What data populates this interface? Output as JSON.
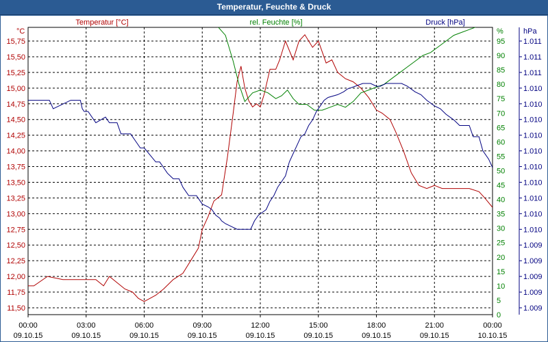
{
  "window": {
    "title": "Temperatur, Feuchte & Druck"
  },
  "chart_data": {
    "type": "line",
    "title": "Temperatur, Feuchte & Druck",
    "x_start": "09.10.15 00:00",
    "x_end": "10.10.15 00:00",
    "x_tick_labels": [
      {
        "time": "00:00",
        "date": "09.10.15"
      },
      {
        "time": "03:00",
        "date": "09.10.15"
      },
      {
        "time": "06:00",
        "date": "09.10.15"
      },
      {
        "time": "09:00",
        "date": "09.10.15"
      },
      {
        "time": "12:00",
        "date": "09.10.15"
      },
      {
        "time": "15:00",
        "date": "09.10.15"
      },
      {
        "time": "18:00",
        "date": "09.10.15"
      },
      {
        "time": "21:00",
        "date": "09.10.15"
      },
      {
        "time": "00:00",
        "date": "10.10.15"
      }
    ],
    "grid": true,
    "axes": {
      "temperature": {
        "unit": "°C",
        "label": "Temperatur [°C]",
        "color": "#b00000",
        "ylim": [
          11.5,
          15.75
        ],
        "ticks": [
          "11,50",
          "11,75",
          "12,00",
          "12,25",
          "12,50",
          "12,75",
          "13,00",
          "13,25",
          "13,50",
          "13,75",
          "14,00",
          "14,25",
          "14,50",
          "14,75",
          "15,00",
          "15,25",
          "15,50",
          "15,75"
        ]
      },
      "humidity": {
        "unit": "%",
        "label": "rel. Feuchte [%]",
        "color": "#008000",
        "ylim": [
          0,
          95
        ],
        "ticks": [
          "0",
          "5",
          "10",
          "15",
          "20",
          "25",
          "30",
          "35",
          "40",
          "45",
          "50",
          "55",
          "60",
          "65",
          "70",
          "75",
          "80",
          "85",
          "90",
          "95"
        ]
      },
      "pressure": {
        "unit": "hPa",
        "label": "Druck [hPa]",
        "color": "#000080",
        "ticks": [
          "1.009",
          "1.009",
          "1.009",
          "1.009",
          "1.009",
          "1.010",
          "1.010",
          "1.010",
          "1.010",
          "1.010",
          "1.010",
          "1.010",
          "1.010",
          "1.010",
          "1.010",
          "1.011",
          "1.011",
          "1.011"
        ]
      }
    },
    "series": [
      {
        "name": "Temperatur [°C]",
        "axis": "temperature",
        "color": "#b00000",
        "x": [
          0,
          0.3,
          1,
          1.8,
          2.4,
          3,
          3.5,
          3.9,
          4.2,
          4.6,
          5,
          5.4,
          5.7,
          6,
          6.3,
          6.6,
          7,
          7.5,
          8,
          8.4,
          8.8,
          9,
          9.3,
          9.6,
          10,
          10.3,
          10.6,
          10.8,
          11,
          11.2,
          11.4,
          11.6,
          11.8,
          12,
          12.2,
          12.5,
          12.8,
          13,
          13.3,
          13.7,
          14,
          14.3,
          14.7,
          15,
          15.4,
          15.7,
          16,
          16.4,
          16.8,
          17.2,
          17.6,
          18,
          18.3,
          18.7,
          19,
          19.4,
          19.8,
          20.2,
          20.6,
          21,
          21.4,
          21.8,
          22.3,
          22.8,
          23.3,
          23.6,
          24
        ],
        "y": [
          11.85,
          11.85,
          12.0,
          11.95,
          11.95,
          11.95,
          11.95,
          11.85,
          12.0,
          11.9,
          11.8,
          11.75,
          11.65,
          11.6,
          11.65,
          11.7,
          11.8,
          11.95,
          12.05,
          12.25,
          12.45,
          12.75,
          12.95,
          13.2,
          13.3,
          13.9,
          14.6,
          15.1,
          15.35,
          15.0,
          14.8,
          14.7,
          14.75,
          14.7,
          14.9,
          15.3,
          15.3,
          15.45,
          15.75,
          15.45,
          15.75,
          15.85,
          15.65,
          15.75,
          15.4,
          15.45,
          15.25,
          15.15,
          15.1,
          15.0,
          14.85,
          14.65,
          14.6,
          14.5,
          14.3,
          14.0,
          13.65,
          13.45,
          13.4,
          13.45,
          13.4,
          13.4,
          13.4,
          13.4,
          13.35,
          13.25,
          13.1
        ]
      },
      {
        "name": "rel. Feuchte [%]",
        "axis": "humidity",
        "color": "#008000",
        "x": [
          9.8,
          10.2,
          10.6,
          10.9,
          11.2,
          11.6,
          12,
          12.4,
          12.8,
          13.1,
          13.4,
          13.7,
          14,
          14.4,
          14.8,
          15.2,
          15.6,
          16,
          16.4,
          16.8,
          17.2,
          17.6,
          18,
          18.4,
          18.8,
          19.2,
          19.6,
          20,
          20.4,
          20.8,
          21.2,
          21.6,
          22,
          22.4,
          22.8,
          23.2,
          23.6
        ],
        "y": [
          100,
          97,
          88,
          80,
          74,
          77,
          78,
          77,
          75,
          76,
          78,
          75,
          73,
          73,
          71,
          71,
          72,
          73,
          72,
          74,
          77,
          78,
          79,
          80,
          82,
          84,
          86,
          88,
          90,
          91,
          93,
          95,
          97,
          98,
          99,
          100,
          100
        ]
      },
      {
        "name": "Druck [hPa]",
        "axis": "pressure",
        "color": "#000080",
        "x": [
          0,
          0.9,
          1.1,
          1.3,
          2.2,
          2.3,
          2.5,
          2.7,
          2.8,
          2.9,
          3.1,
          3.5,
          4,
          4.2,
          4.6,
          4.8,
          5.3,
          5.6,
          5.8,
          6,
          6.6,
          6.8,
          7,
          7.2,
          7.5,
          7.8,
          8,
          8.3,
          8.5,
          8.7,
          8.9,
          9,
          9.3,
          9.5,
          9.7,
          9.9,
          10,
          10.2,
          10.5,
          10.8,
          11,
          11.2,
          11.5,
          11.7,
          11.9,
          12.1,
          12.3,
          12.5,
          12.7,
          12.9,
          13.1,
          13.3,
          13.5,
          13.7,
          13.9,
          14.1,
          14.3,
          14.5,
          14.7,
          14.9,
          15.1,
          15.3,
          15.5,
          16,
          16.3,
          16.5,
          16.9,
          17.3,
          17.7,
          18,
          18.2,
          18.5,
          18.8,
          19,
          19.3,
          19.6,
          20,
          20.3,
          20.6,
          21,
          21.3,
          21.6,
          22,
          22.3,
          22.5,
          22.8,
          23,
          23.3,
          23.5,
          23.8,
          24
        ],
        "y": [
          74,
          74,
          74,
          71,
          74,
          74,
          74,
          74,
          71,
          70,
          70,
          66,
          68,
          66,
          66,
          62,
          62,
          59,
          57,
          57,
          52,
          52,
          50,
          48,
          46,
          46,
          43,
          40,
          40,
          40,
          38,
          37,
          36,
          35,
          33,
          32,
          31,
          30,
          29,
          28,
          28,
          28,
          28,
          31,
          33,
          34,
          35,
          38,
          40,
          43,
          45,
          47,
          52,
          55,
          58,
          61,
          62,
          65,
          67,
          70,
          72,
          74,
          75,
          76,
          77,
          78,
          79,
          80,
          80,
          79,
          79,
          80,
          80,
          80,
          80,
          79,
          77,
          76,
          74,
          72,
          71,
          69,
          67,
          65,
          65,
          65,
          61,
          61,
          56,
          53,
          50
        ]
      }
    ],
    "pressure_display_values": [
      74,
      74,
      74,
      71,
      74,
      74,
      74,
      74,
      71,
      70,
      70,
      66,
      68,
      66,
      66,
      62,
      62,
      59,
      57,
      57,
      52,
      52,
      50,
      48,
      46,
      46,
      43,
      40,
      40,
      40,
      38,
      37,
      36,
      35,
      33,
      32,
      31,
      30,
      29,
      28,
      28,
      28,
      28,
      31,
      33,
      34,
      35,
      38,
      40,
      43,
      45,
      47,
      52,
      55,
      58,
      61,
      62,
      65,
      67,
      70,
      72,
      74,
      75,
      76,
      77,
      78,
      79,
      80,
      80,
      79,
      79,
      80,
      80,
      80,
      80,
      79,
      77,
      76,
      74,
      72,
      71,
      69,
      67,
      65,
      65,
      65,
      61,
      61,
      56,
      53,
      50
    ]
  }
}
